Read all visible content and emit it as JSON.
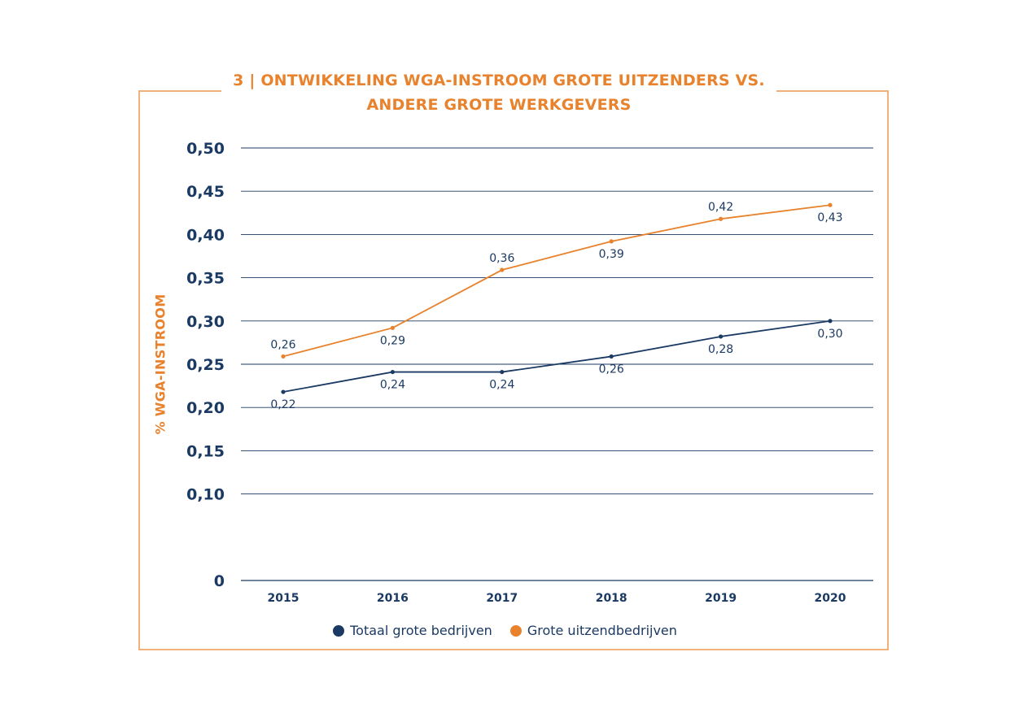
{
  "chart_data": {
    "type": "line",
    "title_lines": [
      "3 | ONTWIKKELING WGA-INSTROOM GROTE UITZENDERS VS.",
      "ANDERE GROTE WERKGEVERS"
    ],
    "ylabel": "% WGA-INSTROOM",
    "xlabel": "",
    "categories": [
      "2015",
      "2016",
      "2017",
      "2018",
      "2019",
      "2020"
    ],
    "ylim": [
      0,
      0.5
    ],
    "yticks": [
      0,
      0.1,
      0.15,
      0.2,
      0.25,
      0.3,
      0.35,
      0.4,
      0.45,
      0.5
    ],
    "ytick_labels": [
      "0",
      "0,10",
      "0,15",
      "0,20",
      "0,25",
      "0,30",
      "0,35",
      "0,40",
      "0,45",
      "0,50"
    ],
    "grid": true,
    "legend_position": "bottom-center",
    "series": [
      {
        "name": "Totaal grote bedrijven",
        "color": "#1B3A63",
        "values": [
          0.218,
          0.241,
          0.241,
          0.259,
          0.282,
          0.3
        ],
        "labels": [
          "0,22",
          "0,24",
          "0,24",
          "0,26",
          "0,28",
          "0,30"
        ],
        "label_side": [
          "below",
          "below",
          "below",
          "below",
          "below",
          "below"
        ]
      },
      {
        "name": "Grote uitzendbedrijven",
        "color": "#E8822C",
        "values": [
          0.259,
          0.292,
          0.359,
          0.392,
          0.418,
          0.434
        ],
        "labels": [
          "0,26",
          "0,29",
          "0,36",
          "0,39",
          "0,42",
          "0,43"
        ],
        "label_side": [
          "above",
          "below",
          "above",
          "below",
          "above",
          "below"
        ]
      }
    ]
  }
}
